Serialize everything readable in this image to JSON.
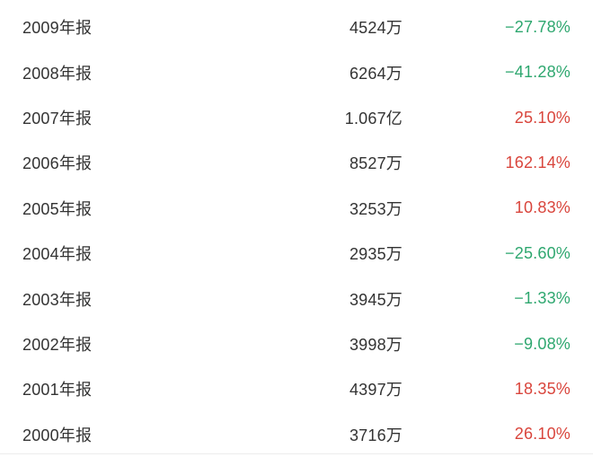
{
  "colors": {
    "up": "#d9453c",
    "down": "#2ea76f",
    "text": "#333333",
    "divider": "#ededed",
    "background": "#ffffff"
  },
  "table": {
    "rows": [
      {
        "period": "2009年报",
        "value": "4524万",
        "change": "−27.78%",
        "direction": "down"
      },
      {
        "period": "2008年报",
        "value": "6264万",
        "change": "−41.28%",
        "direction": "down"
      },
      {
        "period": "2007年报",
        "value": "1.067亿",
        "change": "25.10%",
        "direction": "up"
      },
      {
        "period": "2006年报",
        "value": "8527万",
        "change": "162.14%",
        "direction": "up"
      },
      {
        "period": "2005年报",
        "value": "3253万",
        "change": "10.83%",
        "direction": "up"
      },
      {
        "period": "2004年报",
        "value": "2935万",
        "change": "−25.60%",
        "direction": "down"
      },
      {
        "period": "2003年报",
        "value": "3945万",
        "change": "−1.33%",
        "direction": "down"
      },
      {
        "period": "2002年报",
        "value": "3998万",
        "change": "−9.08%",
        "direction": "down"
      },
      {
        "period": "2001年报",
        "value": "4397万",
        "change": "18.35%",
        "direction": "up"
      },
      {
        "period": "2000年报",
        "value": "3716万",
        "change": "26.10%",
        "direction": "up"
      }
    ]
  }
}
